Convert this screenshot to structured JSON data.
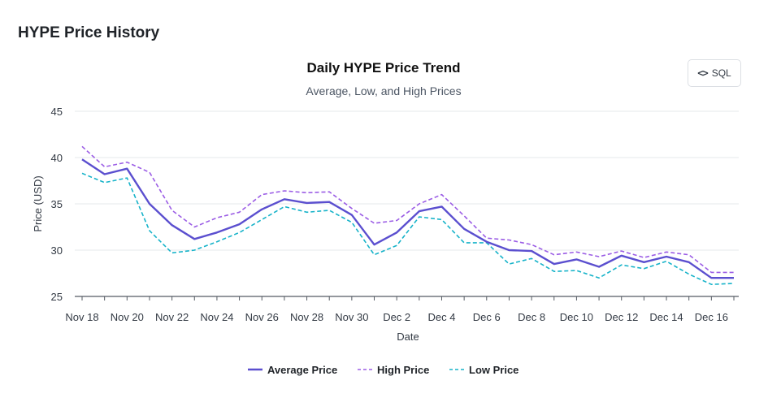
{
  "page": {
    "title": "HYPE Price History"
  },
  "toolbar": {
    "sql_label": "SQL",
    "sql_icon": "code-icon"
  },
  "chart_data": {
    "type": "line",
    "title": "Daily HYPE Price Trend",
    "subtitle": "Average, Low, and High Prices",
    "xlabel": "Date",
    "ylabel": "Price (USD)",
    "ylim": [
      25,
      45
    ],
    "yticks": [
      25,
      30,
      35,
      40,
      45
    ],
    "grid": true,
    "legend_position": "bottom-center",
    "x": [
      "Nov 18",
      "Nov 19",
      "Nov 20",
      "Nov 21",
      "Nov 22",
      "Nov 23",
      "Nov 24",
      "Nov 25",
      "Nov 26",
      "Nov 27",
      "Nov 28",
      "Nov 29",
      "Nov 30",
      "Dec 1",
      "Dec 2",
      "Dec 3",
      "Dec 4",
      "Dec 5",
      "Dec 6",
      "Dec 7",
      "Dec 8",
      "Dec 9",
      "Dec 10",
      "Dec 11",
      "Dec 12",
      "Dec 13",
      "Dec 14",
      "Dec 15",
      "Dec 16",
      "Dec 17"
    ],
    "xtick_labels": [
      "Nov 18",
      "Nov 20",
      "Nov 22",
      "Nov 24",
      "Nov 26",
      "Nov 28",
      "Nov 30",
      "Dec 2",
      "Dec 4",
      "Dec 6",
      "Dec 8",
      "Dec 10",
      "Dec 12",
      "Dec 14",
      "Dec 16"
    ],
    "series": [
      {
        "name": "Average Price",
        "color": "#5b4fcf",
        "dash": "solid",
        "values": [
          39.8,
          38.2,
          38.8,
          35.0,
          32.7,
          31.2,
          31.9,
          32.8,
          34.4,
          35.5,
          35.1,
          35.2,
          33.8,
          30.6,
          31.9,
          34.2,
          34.7,
          32.3,
          30.9,
          30.0,
          29.9,
          28.5,
          29.0,
          28.2,
          29.4,
          28.7,
          29.3,
          28.7,
          27.0,
          27.0
        ]
      },
      {
        "name": "High Price",
        "color": "#9b5de5",
        "dash": "dashed",
        "values": [
          41.2,
          39.0,
          39.5,
          38.4,
          34.3,
          32.5,
          33.5,
          34.1,
          36.0,
          36.4,
          36.2,
          36.3,
          34.5,
          32.9,
          33.2,
          35.0,
          36.0,
          33.7,
          31.3,
          31.1,
          30.6,
          29.5,
          29.8,
          29.3,
          29.9,
          29.2,
          29.8,
          29.5,
          27.6,
          27.6
        ]
      },
      {
        "name": "Low Price",
        "color": "#17b3c9",
        "dash": "dashed",
        "values": [
          38.3,
          37.3,
          37.8,
          32.1,
          29.7,
          30.0,
          30.9,
          31.9,
          33.3,
          34.7,
          34.1,
          34.3,
          33.0,
          29.5,
          30.5,
          33.6,
          33.3,
          30.8,
          30.8,
          28.5,
          29.1,
          27.7,
          27.8,
          27.0,
          28.4,
          28.0,
          28.8,
          27.4,
          26.3,
          26.4
        ]
      }
    ]
  }
}
